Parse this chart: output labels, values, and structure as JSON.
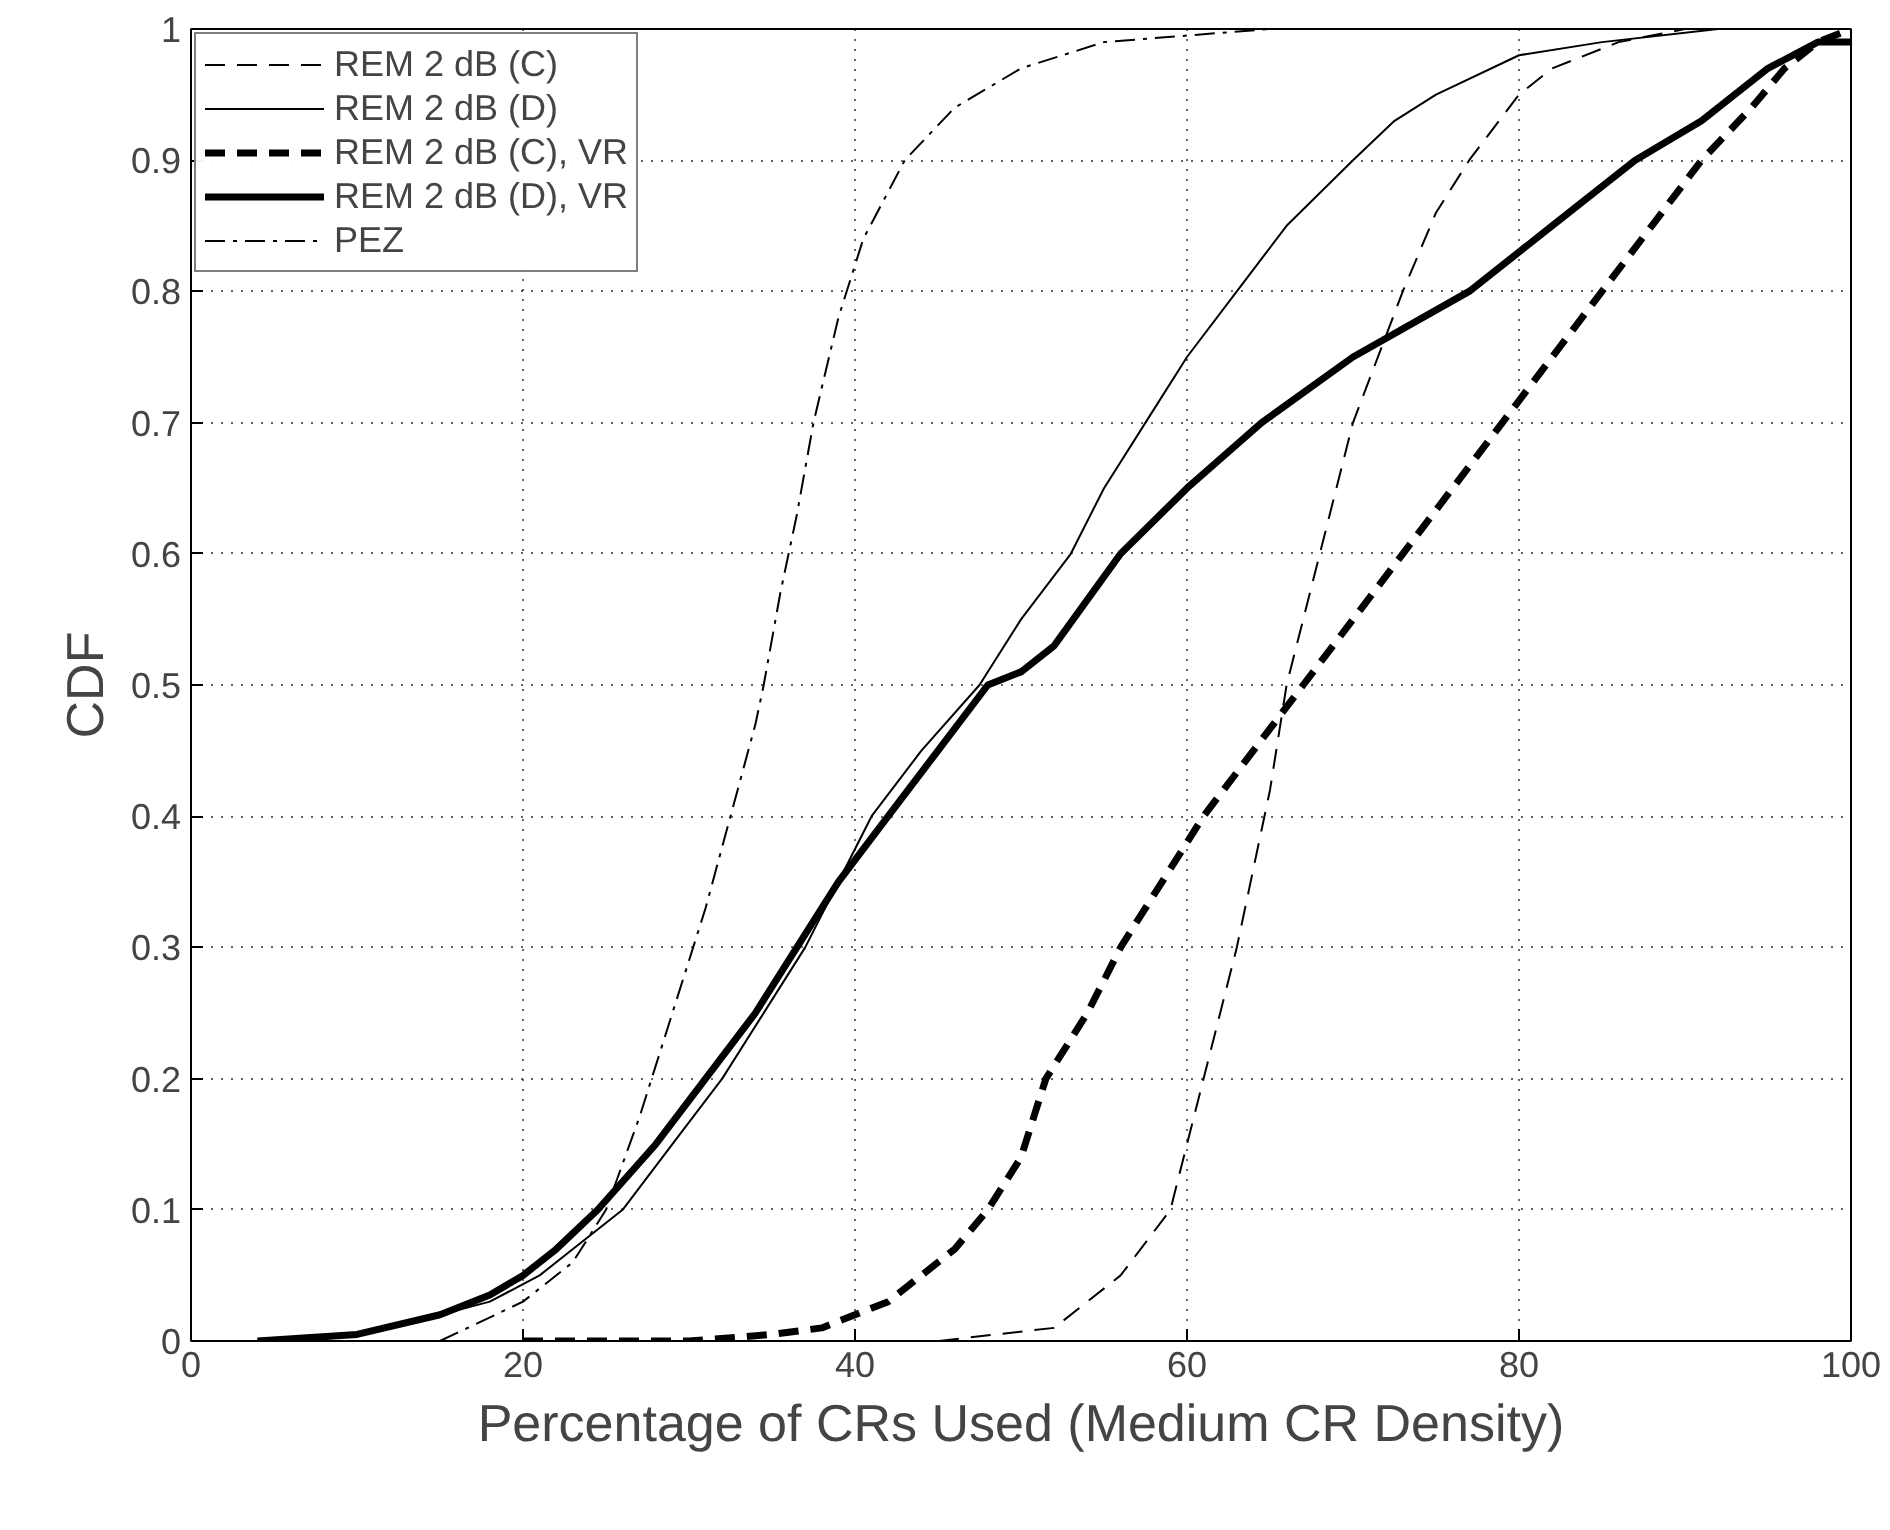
{
  "chart_data": {
    "type": "line",
    "xlabel": "Percentage of CRs Used (Medium CR Density)",
    "ylabel": "CDF",
    "xlim": [
      0,
      100
    ],
    "ylim": [
      0,
      1
    ],
    "xticks": [
      0,
      20,
      40,
      60,
      80,
      100
    ],
    "yticks": [
      0,
      0.1,
      0.2,
      0.3,
      0.4,
      0.5,
      0.6,
      0.7,
      0.8,
      0.9,
      1
    ],
    "grid": true,
    "legend": "top left",
    "marker": "none",
    "series": [
      {
        "name": "REM 2 dB (C)",
        "color": "#000000",
        "line_style": "dashed",
        "x": [
          20,
          45,
          52,
          56,
          59,
          61,
          63,
          65,
          66,
          68,
          70,
          73,
          75,
          77,
          80,
          82,
          86,
          90,
          100
        ],
        "values": [
          0,
          0,
          0.01,
          0.05,
          0.1,
          0.2,
          0.3,
          0.42,
          0.5,
          0.6,
          0.7,
          0.8,
          0.86,
          0.9,
          0.95,
          0.97,
          0.99,
          1,
          1
        ]
      },
      {
        "name": "REM 2 dB (D)",
        "color": "#000000",
        "line_style": "solid",
        "x": [
          5,
          10,
          15,
          18,
          21,
          24,
          26,
          29,
          32,
          35,
          37,
          39,
          41,
          44,
          47.5,
          50,
          53,
          55,
          57.5,
          60,
          63,
          66,
          70,
          72.5,
          75,
          80,
          85,
          92,
          100
        ],
        "values": [
          0,
          0.005,
          0.02,
          0.03,
          0.05,
          0.08,
          0.1,
          0.15,
          0.2,
          0.26,
          0.3,
          0.35,
          0.4,
          0.45,
          0.5,
          0.55,
          0.6,
          0.65,
          0.7,
          0.75,
          0.8,
          0.85,
          0.9,
          0.93,
          0.95,
          0.98,
          0.99,
          1,
          1
        ]
      },
      {
        "name": "REM 2 dB (C), VR",
        "color": "#000000",
        "line_style": "dashed",
        "x": [
          20,
          30,
          35,
          38,
          40,
          42,
          44,
          46,
          48,
          50,
          51.5,
          54,
          56,
          58.5,
          61,
          64,
          67,
          70,
          73,
          76,
          79,
          82,
          85,
          88,
          91,
          94,
          96,
          98,
          100
        ],
        "values": [
          0,
          0,
          0.005,
          0.01,
          0.02,
          0.03,
          0.05,
          0.07,
          0.1,
          0.14,
          0.2,
          0.25,
          0.3,
          0.35,
          0.4,
          0.45,
          0.5,
          0.55,
          0.6,
          0.65,
          0.7,
          0.75,
          0.8,
          0.85,
          0.9,
          0.94,
          0.97,
          0.99,
          1
        ]
      },
      {
        "name": "REM 2 dB (D), VR",
        "color": "#000000",
        "line_style": "solid",
        "x": [
          4,
          10,
          15,
          18,
          20,
          22,
          24.5,
          28,
          31,
          34,
          36.5,
          39,
          42,
          45,
          48,
          50,
          52,
          56,
          60,
          64.5,
          70,
          77,
          82,
          87,
          91,
          95,
          98,
          100
        ],
        "values": [
          0,
          0.005,
          0.02,
          0.035,
          0.05,
          0.07,
          0.1,
          0.15,
          0.2,
          0.25,
          0.3,
          0.35,
          0.4,
          0.45,
          0.5,
          0.51,
          0.53,
          0.6,
          0.65,
          0.7,
          0.75,
          0.8,
          0.85,
          0.9,
          0.93,
          0.97,
          0.99,
          0.99
        ]
      },
      {
        "name": "PEZ",
        "color": "#000000",
        "line_style": "dashdot",
        "x": [
          15,
          20,
          23,
          25,
          27,
          29,
          31,
          32.5,
          34,
          34.5,
          35.5,
          36.5,
          37.5,
          39,
          40.5,
          43,
          46,
          50,
          55,
          60,
          65,
          100
        ],
        "values": [
          0,
          0.03,
          0.06,
          0.1,
          0.17,
          0.25,
          0.33,
          0.4,
          0.47,
          0.5,
          0.57,
          0.63,
          0.7,
          0.78,
          0.84,
          0.9,
          0.94,
          0.97,
          0.99,
          0.995,
          1,
          1
        ]
      }
    ]
  }
}
